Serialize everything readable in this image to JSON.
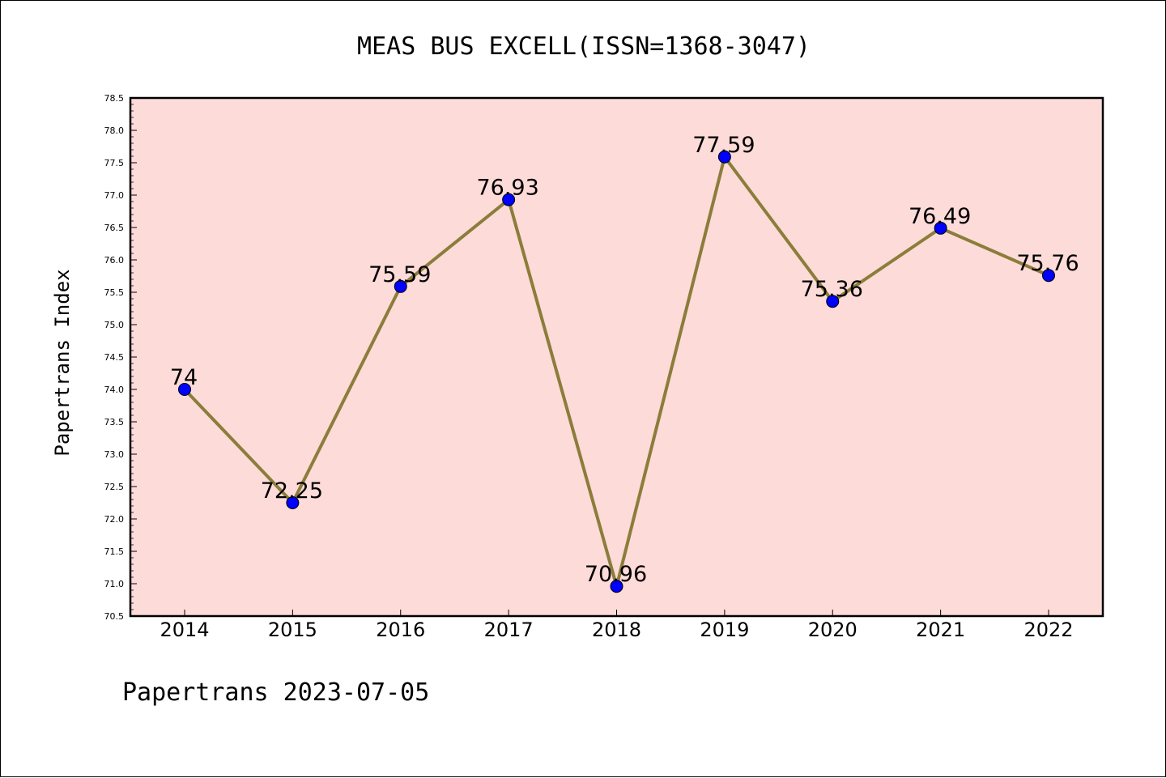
{
  "chart_data": {
    "type": "line",
    "title": "MEAS BUS EXCELL(ISSN=1368-3047)",
    "ylabel": "Papertrans Index",
    "xlabel": "",
    "footer": "Papertrans 2023-07-05",
    "categories": [
      "2014",
      "2015",
      "2016",
      "2017",
      "2018",
      "2019",
      "2020",
      "2021",
      "2022"
    ],
    "series": [
      {
        "values": [
          74,
          72.25,
          75.59,
          76.93,
          70.96,
          77.59,
          75.36,
          76.49,
          75.76
        ],
        "labels": [
          "74",
          "72.25",
          "75.59",
          "76.93",
          "70.96",
          "77.59",
          "75.36",
          "76.49",
          "75.76"
        ]
      }
    ],
    "ylim": [
      70.5,
      78.5
    ],
    "yticks": [
      "70.5",
      "71.0",
      "71.5",
      "72.0",
      "72.5",
      "73.0",
      "73.5",
      "74.0",
      "74.5",
      "75.0",
      "75.5",
      "76.0",
      "76.5",
      "77.0",
      "77.5",
      "78.0",
      "78.5"
    ],
    "grid": false,
    "colors": {
      "plot_background": "#fddbd9",
      "line": "#8b7d3a",
      "marker": "#0000ff",
      "marker_edge": "#000000"
    }
  }
}
